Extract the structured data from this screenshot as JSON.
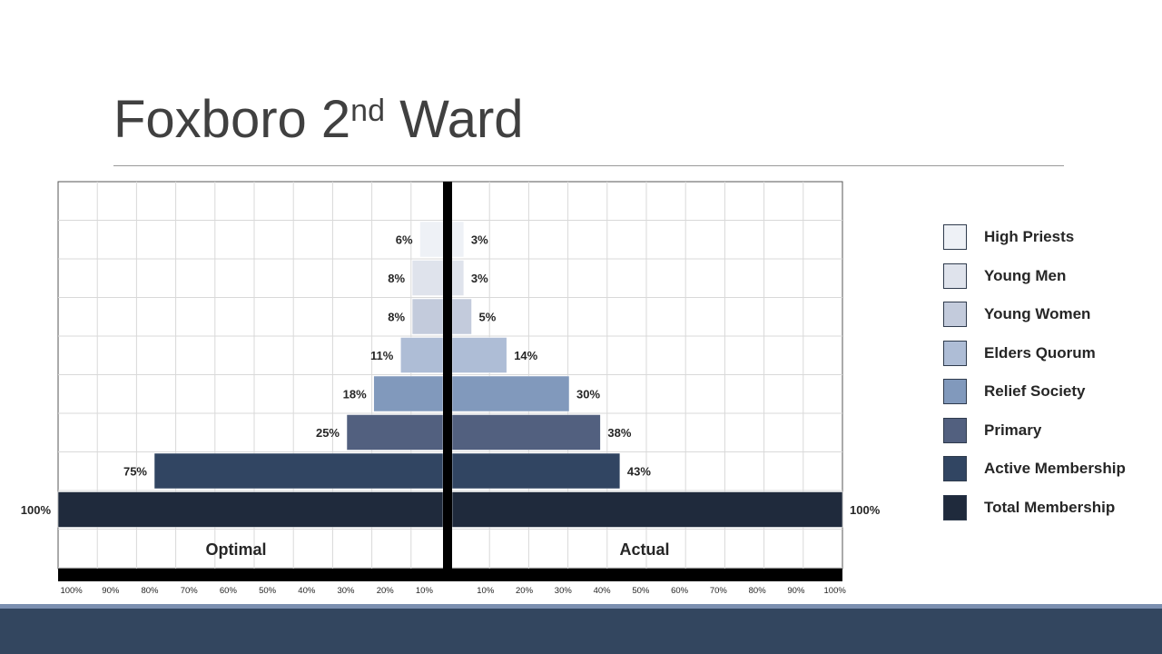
{
  "page": {
    "title_main": "Foxboro 2",
    "title_sup": "nd",
    "title_tail": " Ward"
  },
  "colors": {
    "footer_stripe": "#7b8fb0",
    "footer_bar": "#33465f",
    "center_divider": "#000000"
  },
  "chart_data": {
    "type": "bar",
    "subtype": "mirrored horizontal bar (population pyramid)",
    "categories": [
      "High Priests",
      "Young Men",
      "Young Women",
      "Elders Quorum",
      "Relief Society",
      "Primary",
      "Active Membership",
      "Total Membership"
    ],
    "colors": [
      "#eef1f6",
      "#dfe3ec",
      "#c3cbdc",
      "#aebdd6",
      "#8199bc",
      "#52607f",
      "#314562",
      "#1f2a3c"
    ],
    "series": [
      {
        "name": "Optimal",
        "values": [
          6,
          8,
          8,
          11,
          18,
          25,
          75,
          100
        ],
        "labels": [
          "6%",
          "8%",
          "8%",
          "11%",
          "18%",
          "25%",
          "75%",
          "100%"
        ]
      },
      {
        "name": "Actual",
        "values": [
          3,
          3,
          5,
          14,
          30,
          38,
          43,
          100
        ],
        "labels": [
          "3%",
          "3%",
          "5%",
          "14%",
          "30%",
          "38%",
          "43%",
          "100%"
        ]
      }
    ],
    "xlim": [
      0,
      100
    ],
    "left_ticks": [
      "100%",
      "90%",
      "80%",
      "70%",
      "60%",
      "50%",
      "40%",
      "30%",
      "20%",
      "10%"
    ],
    "right_ticks": [
      "10%",
      "20%",
      "30%",
      "40%",
      "50%",
      "60%",
      "70%",
      "80%",
      "90%",
      "100%"
    ],
    "grid": true,
    "legend_position": "right"
  }
}
